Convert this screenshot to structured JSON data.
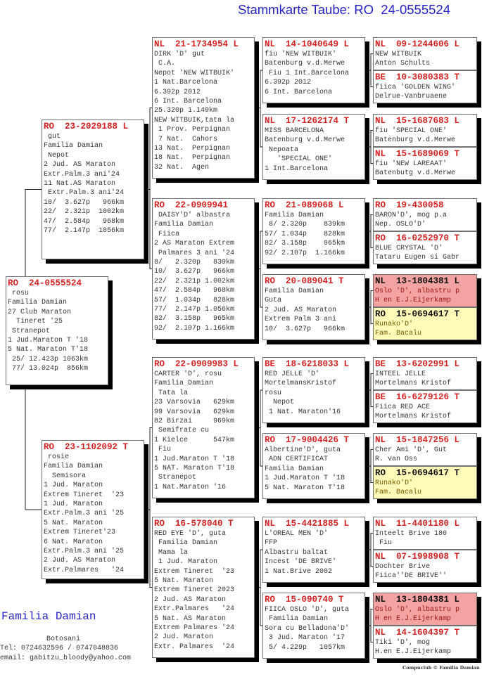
{
  "title": "Stammkarte Taube: RO  24-0555524",
  "colors": {
    "ring_red": "#d62222",
    "title_blue": "#2424c8",
    "highlight_pink": "#f4a3a3",
    "highlight_yellow": "#fffbb8"
  },
  "pedigree": [
    {
      "ring": "RO  24-0555524",
      "lines": [
        " rosu",
        "Familia Damian",
        "27 Club Maraton",
        "  Tineret '25",
        "",
        " Stranepot",
        "1 Jud.Maraton T '18",
        "5 Nat. Maraton T'18",
        " 25/ 12.423p 1063km",
        " 77/ 13.024p  856km"
      ]
    },
    {
      "ring": "RO  23-2029188 L",
      "lines": [
        " gut",
        "Familia Damian",
        " Nepot",
        "2 Jud. AS Maraton",
        "Extr.Palm.3 ani'24",
        "11 Nat.AS Maraton",
        " Extr.Palm.3 ani'24",
        "10/  3.627p   966km",
        "22/  2.321p  1002km",
        "47/  2.584p   968km",
        "77/  2.147p  1056km"
      ]
    },
    {
      "ring": "RO  23-1102092 T",
      "lines": [
        " rosie",
        "Familia Damian",
        "  Semisora",
        "1 Jud. Maraton",
        "Extrem Tineret  '23",
        "1 Jud. Maraton",
        "Extr.Palm.3 ani '25",
        "5 Nat. Maraton",
        "Extrem Tineret'23",
        "6 Nat. Maraton",
        "Extr.Palm.3 ani '25",
        "2 Jud. AS Maraton",
        "Extr.Palmares   '24"
      ]
    },
    {
      "ring": "NL  21-1734954 L",
      "lines": [
        "DIRK 'D' gut",
        " C.A.",
        "Nepot 'NEW WITBUIK'",
        "1 Nat.Barcelona",
        "6.392p 2012",
        "6 Int. Barcelona",
        "25.320p 1.149km",
        "NEW WITBUIK,tata la",
        " 1 Prov. Perpignan",
        " 7 Nat.  Cahors",
        "13 Nat.  Perpignan",
        "18 Nat.  Perpignan",
        "32 Nat.  Agen"
      ]
    },
    {
      "ring": "RO  22-0909941",
      "lines": [
        " DAISY'D' albastra",
        "Familia Damian",
        " Fiica",
        "2 AS Maraton Extrem",
        " Palmares 3 ani '24",
        "8/   2.320p   839km",
        "10/  3.627p   966km",
        "22/  2.321p 1.002km",
        "47/  2.584p   968km",
        "57/  1.034p   828km",
        "77/  2.147p 1.056km",
        "82/  3.158p   965km",
        "92/  2.107p 1.166km"
      ]
    },
    {
      "ring": "RO  22-0909983 L",
      "lines": [
        "CARTER 'D', rosu",
        "Familia Damian",
        " Tata la",
        "23 Varsovia   629km",
        "99 Varsovia   629km",
        "82 Birzai     969km",
        " Semifrate cu",
        "1 Kielce      547km",
        " Fiu",
        "1 Jud.Maraton T '18",
        "5 NAT. Maraton T'18",
        " Stranepot",
        "1 Nat.Maraton '16"
      ]
    },
    {
      "ring": "RO  16-578040 T",
      "lines": [
        "RED EYE 'D', guta",
        " Familia Damian",
        " Mama la",
        " 1 Jud. Maraton",
        "Extrem Tineret  '23",
        "5 Nat. Maraton",
        "Extrem Tineret 2023",
        "2 Jud. AS Maraton",
        "Extr.Palmares   '24",
        "5 Nat. AS Maraton",
        "Extrem Palmares '24",
        "2 Jud. Maraton",
        "Extr. Palmares  '24"
      ]
    },
    {
      "ring": "NL  14-1040649 L",
      "lines": [
        "fiu 'NEW WITBUIK'",
        "Batenburg v.d.Merwe",
        " Fiu 1 Int.Barcelona",
        "6.392p 2012",
        "6 Int. Barcelona"
      ]
    },
    {
      "ring": "NL  17-1262174 T",
      "lines": [
        "MISS BARCELONA",
        "Batenburg v.d.Merwe",
        " Nepoata",
        "   'SPECIAL ONE'",
        "1 Int.Barcelona"
      ]
    },
    {
      "ring": "RO  21-089068 L",
      "lines": [
        "Familia Damian",
        " 8/ 2.320p    839km",
        "57/ 1.034p    828km",
        "82/ 3.158p    965km",
        "92/ 2.107p  1.166km"
      ]
    },
    {
      "ring": "RO  20-089041 T",
      "lines": [
        "Familia Damian",
        "Guta",
        "2 Jud. AS Maraton",
        "Extrem Palm 3 ani",
        "10/  3.627p   966km"
      ]
    },
    {
      "ring": "BE  18-6218033 L",
      "lines": [
        "RED JELLE 'D'",
        "MortelmansKristof",
        "rosu",
        "  Nepot",
        " 1 Nat. Maraton'16"
      ]
    },
    {
      "ring": "RO  17-9004426 T",
      "lines": [
        "Albertine'D', guta",
        " ADN CERTIFICAT",
        "Familia Damian",
        "1 Jud.Maraton T '18",
        "5 Nat. Maraton T'18"
      ]
    },
    {
      "ring": "NL  15-4421885 L",
      "lines": [
        "L'OREAL MEN 'D'",
        "FFP",
        "Albastru baltat",
        "Incest 'DE BRIVE'",
        "1 Nat.Brive 2002"
      ]
    },
    {
      "ring": "RO  15-090740 T",
      "lines": [
        "FIICA OSLO 'D', guta",
        " Familia Damian",
        "Sora cu Belladona'D'",
        " 3 Jud. Maraton '17",
        " 5/ 4.229p   1057km"
      ]
    },
    {
      "ring": "NL  09-1244606 L",
      "lines": [
        "NEW WITBUIK",
        "Anton Schults"
      ]
    },
    {
      "ring": "BE  10-3080383 T",
      "lines": [
        "fiica 'GOLDEN WING'",
        "Delrue-Vanbruaene"
      ]
    },
    {
      "ring": "NL  15-1687683 L",
      "lines": [
        "fiu 'SPECIAL ONE'",
        "Batenburg v.d.Merwe"
      ]
    },
    {
      "ring": "NL  15-1689069 T",
      "lines": [
        "fiu 'NEW LAREAAT'",
        "Batenbutg v.d.Merwe"
      ]
    },
    {
      "ring": "RO  19-430058",
      "lines": [
        "BARON'D', mog p.a",
        "Nep. OSLO'D'"
      ]
    },
    {
      "ring": "RO  16-0252970 T",
      "lines": [
        "BLUE CRYSTAL 'D'",
        "Tataru Eugen si Gabr"
      ]
    },
    {
      "ring": "NL  13-1804381 L",
      "highlight": "pink",
      "lines": [
        "Oslo 'D', albastru p",
        "H en E.J.Eijerkamp"
      ]
    },
    {
      "ring": "RO  15-0694617 T",
      "highlight": "yellow",
      "lines": [
        "Runako'D'",
        "Fam. Bacalu"
      ]
    },
    {
      "ring": "BE  13-6202991 L",
      "lines": [
        "INTEEL JELLE",
        "Mortelmans Kristof"
      ]
    },
    {
      "ring": "BE  16-6279126 T",
      "lines": [
        "Fiica RED ACE",
        "Mortelmans Kristof"
      ]
    },
    {
      "ring": "NL  15-1847256 L",
      "lines": [
        "Cher Ami 'D', Gut",
        "R. van Oss"
      ]
    },
    {
      "ring": "RO  15-0694617 T",
      "highlight": "yellow",
      "lines": [
        "Runako'D'",
        "Fam. Bacalu"
      ]
    },
    {
      "ring": "NL  11-4401180 L",
      "lines": [
        "Inteelt Brive 180",
        " Fiu"
      ]
    },
    {
      "ring": "NL  07-1998908 T",
      "lines": [
        "Dochter Brive",
        "Fiica''DE BRIVE''"
      ]
    },
    {
      "ring": "NL  13-1804381 L",
      "highlight": "pink",
      "lines": [
        "Oslo 'D', albastru p",
        "H en E.J.Eijerkamp"
      ]
    },
    {
      "ring": "NL  14-1604397 T",
      "lines": [
        "Tiki 'D', mog",
        "H.en E.J.Eijerkamp"
      ]
    }
  ],
  "footer": {
    "breeder": "Familia Damian",
    "city": "Botosani",
    "phone": "Tel: 0724632596 / 0747048836",
    "email": "email: gabitzu_bloody@yahoo.com",
    "credit": "Compuclub © Familia Damian"
  }
}
